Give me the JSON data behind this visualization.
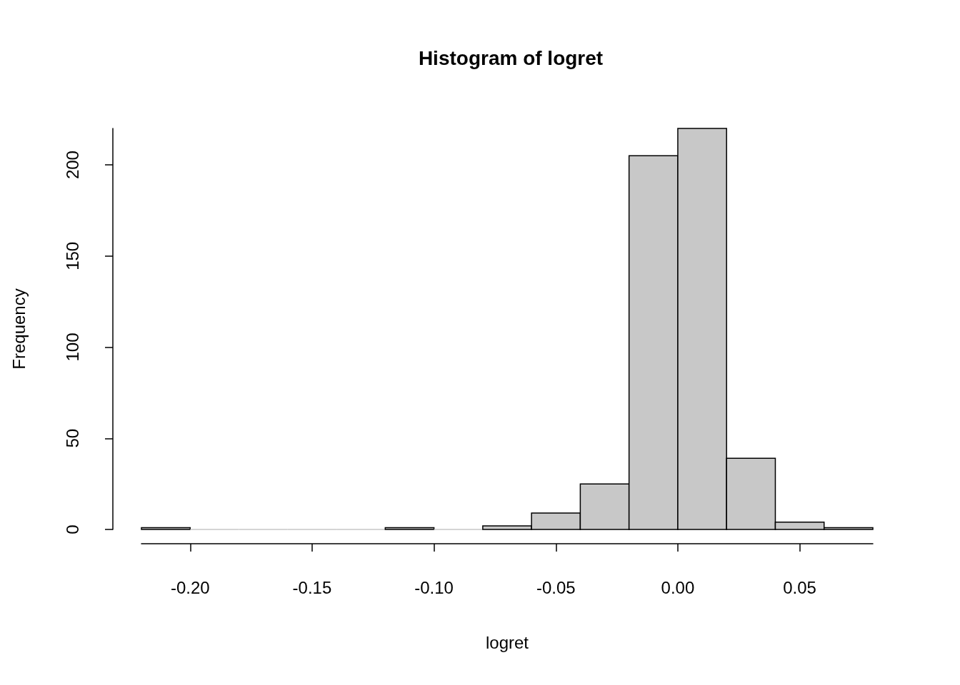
{
  "chart_data": {
    "type": "histogram",
    "title": "Histogram of logret",
    "xlabel": "logret",
    "ylabel": "Frequency",
    "bins": [
      -0.22,
      -0.2,
      -0.18,
      -0.16,
      -0.14,
      -0.12,
      -0.1,
      -0.08,
      -0.06,
      -0.04,
      -0.02,
      0,
      0.02,
      0.04,
      0.06,
      0.08
    ],
    "values": [
      1,
      0,
      0,
      0,
      0,
      1,
      0,
      2,
      9,
      25,
      205,
      220,
      39,
      4,
      1
    ],
    "color": "#c8c8c8",
    "xlim": [
      -0.22,
      0.08
    ],
    "xticks": [
      {
        "value": -0.2,
        "label": "-0.20"
      },
      {
        "value": -0.15,
        "label": "-0.15"
      },
      {
        "value": -0.1,
        "label": "-0.10"
      },
      {
        "value": -0.05,
        "label": "-0.05"
      },
      {
        "value": 0,
        "label": "0.00"
      },
      {
        "value": 0.05,
        "label": "0.05"
      }
    ],
    "ylim": [
      0,
      220
    ],
    "yticks": [
      0,
      50,
      100,
      150,
      200
    ]
  }
}
